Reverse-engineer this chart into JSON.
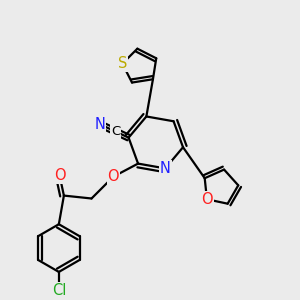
{
  "bg_color": "#ebebeb",
  "atom_colors": {
    "N": "#2020ff",
    "O": "#ff2020",
    "S": "#bbaa00",
    "Cl": "#22aa22",
    "C": "#000000"
  },
  "bond_color": "#000000",
  "bond_lw": 1.6,
  "font_size": 10.5
}
